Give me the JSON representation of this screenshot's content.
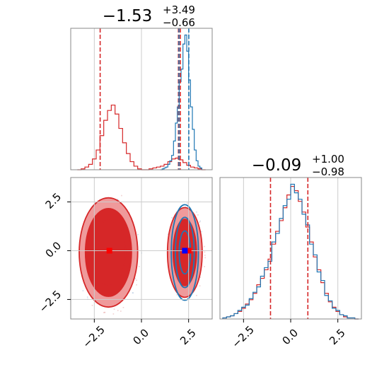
{
  "colors": {
    "red": "#d62728",
    "blue": "#1f77b4",
    "red_fill": "#ef9a9b",
    "grid": "#cccccc",
    "frame": "#888888"
  },
  "chart_data": [
    {
      "type": "histogram",
      "panel": "marginal-x",
      "title": {
        "value": "−1.53",
        "plus": "+3.49",
        "minus": "−0.66"
      },
      "xlim": [
        -3.75,
        3.75
      ],
      "series": [
        {
          "color": "#d62728",
          "bin_edges": [
            -3.4,
            -3.2,
            -3.0,
            -2.8,
            -2.6,
            -2.4,
            -2.2,
            -2.0,
            -1.8,
            -1.6,
            -1.4,
            -1.2,
            -1.0,
            -0.8,
            -0.6,
            -0.4,
            -0.2,
            0.0,
            0.2,
            0.4,
            0.6,
            0.8,
            1.0,
            1.2,
            1.4,
            1.6,
            1.8,
            2.0,
            2.2,
            2.4,
            2.6,
            2.8,
            3.0,
            3.2,
            3.4
          ],
          "counts": [
            0,
            1,
            3,
            6,
            12,
            22,
            38,
            55,
            66,
            72,
            62,
            46,
            30,
            18,
            9,
            4,
            1,
            0,
            0,
            1,
            2,
            3,
            4,
            6,
            9,
            12,
            13,
            11,
            8,
            5,
            3,
            2,
            1,
            0
          ]
        },
        {
          "color": "#1f77b4",
          "bin_edges": [
            1.0,
            1.1,
            1.2,
            1.3,
            1.4,
            1.5,
            1.6,
            1.7,
            1.8,
            1.9,
            2.0,
            2.1,
            2.2,
            2.3,
            2.4,
            2.5,
            2.6,
            2.7,
            2.8,
            2.9,
            3.0,
            3.1,
            3.2
          ],
          "counts": [
            0,
            1,
            2,
            3,
            6,
            10,
            16,
            32,
            52,
            70,
            98,
            112,
            140,
            150,
            132,
            100,
            70,
            45,
            22,
            10,
            4,
            2
          ]
        }
      ],
      "vlines": [
        {
          "x": -2.19,
          "color": "#d62728"
        },
        {
          "x": 1.96,
          "color": "#d62728"
        },
        {
          "x": 2.06,
          "color": "#d62728"
        },
        {
          "x": 1.99,
          "color": "#1f77b4"
        },
        {
          "x": 2.51,
          "color": "#1f77b4"
        }
      ]
    },
    {
      "type": "histogram",
      "panel": "marginal-y",
      "title": {
        "value": "−0.09",
        "plus": "+1.00",
        "minus": "−0.98"
      },
      "xlim": [
        -3.75,
        3.75
      ],
      "xticks": [
        "−2.5",
        "0.0",
        "2.5"
      ],
      "xtick_values": [
        -2.5,
        0.0,
        2.5
      ],
      "series": [
        {
          "color": "#d62728",
          "bin_edges": [
            -3.6,
            -3.4,
            -3.2,
            -3.0,
            -2.8,
            -2.6,
            -2.4,
            -2.2,
            -2.0,
            -1.8,
            -1.6,
            -1.4,
            -1.2,
            -1.0,
            -0.8,
            -0.6,
            -0.4,
            -0.2,
            0.0,
            0.2,
            0.4,
            0.6,
            0.8,
            1.0,
            1.2,
            1.4,
            1.6,
            1.8,
            2.0,
            2.2,
            2.4,
            2.6,
            2.8,
            3.0,
            3.2,
            3.4,
            3.6
          ],
          "counts": [
            1,
            2,
            3,
            5,
            7,
            10,
            14,
            18,
            24,
            32,
            38,
            46,
            56,
            70,
            82,
            92,
            104,
            116,
            124,
            120,
            110,
            100,
            86,
            72,
            58,
            46,
            34,
            24,
            16,
            11,
            7,
            4,
            2,
            1,
            1,
            0
          ]
        },
        {
          "color": "#1f77b4",
          "bin_edges": [
            -3.6,
            -3.4,
            -3.2,
            -3.0,
            -2.8,
            -2.6,
            -2.4,
            -2.2,
            -2.0,
            -1.8,
            -1.6,
            -1.4,
            -1.2,
            -1.0,
            -0.8,
            -0.6,
            -0.4,
            -0.2,
            0.0,
            0.2,
            0.4,
            0.6,
            0.8,
            1.0,
            1.2,
            1.4,
            1.6,
            1.8,
            2.0,
            2.2,
            2.4,
            2.6,
            2.8,
            3.0,
            3.2,
            3.4,
            3.6
          ],
          "counts": [
            1,
            2,
            3,
            5,
            8,
            11,
            13,
            19,
            25,
            30,
            40,
            48,
            54,
            72,
            80,
            94,
            106,
            112,
            126,
            118,
            112,
            98,
            88,
            70,
            60,
            44,
            36,
            22,
            17,
            10,
            8,
            4,
            3,
            1,
            1,
            0
          ]
        }
      ],
      "vlines": [
        {
          "x": -1.07,
          "color": "#d62728"
        },
        {
          "x": 0.91,
          "color": "#d62728"
        }
      ]
    },
    {
      "type": "contour",
      "panel": "joint",
      "xlim": [
        -3.75,
        3.75
      ],
      "ylim": [
        -3.5,
        3.75
      ],
      "xticks": [
        "−2.5",
        "0.0",
        "2.5"
      ],
      "xtick_values": [
        -2.5,
        0.0,
        2.5
      ],
      "yticks": [
        "2.5",
        "0.0",
        "−2.5"
      ],
      "ytick_values": [
        2.5,
        0.0,
        -2.5
      ],
      "hlines": [
        0.0
      ],
      "vlines": [
        -1.53,
        2.3
      ],
      "distributions": [
        {
          "color": "#d62728",
          "filled": true,
          "levels": [
            {
              "cx": -1.75,
              "cy": -0.09,
              "rx": 1.55,
              "ry": 2.8
            },
            {
              "cx": -1.75,
              "cy": -0.09,
              "rx": 1.22,
              "ry": 2.25
            },
            {
              "cx": -1.75,
              "cy": -0.09,
              "rx": 0.9,
              "ry": 1.65
            }
          ],
          "marker": {
            "x": -1.7,
            "y": 0.0
          }
        },
        {
          "color": "#d62728",
          "filled": true,
          "levels": [
            {
              "cx": 2.3,
              "cy": -0.09,
              "rx": 0.92,
              "ry": 2.3
            },
            {
              "cx": 2.3,
              "cy": -0.09,
              "rx": 0.62,
              "ry": 1.7
            },
            {
              "cx": 2.3,
              "cy": -0.09,
              "rx": 0.38,
              "ry": 1.05
            }
          ],
          "marker": {
            "x": 2.5,
            "y": 0.0
          }
        },
        {
          "color": "#1f77b4",
          "filled": false,
          "levels": [
            {
              "cx": 2.3,
              "cy": -0.09,
              "rx": 0.72,
              "ry": 2.45
            },
            {
              "cx": 2.3,
              "cy": -0.09,
              "rx": 0.5,
              "ry": 1.8
            },
            {
              "cx": 2.3,
              "cy": -0.09,
              "rx": 0.3,
              "ry": 1.1
            }
          ],
          "marker": {
            "x": 2.3,
            "y": 0.0
          }
        }
      ]
    }
  ]
}
